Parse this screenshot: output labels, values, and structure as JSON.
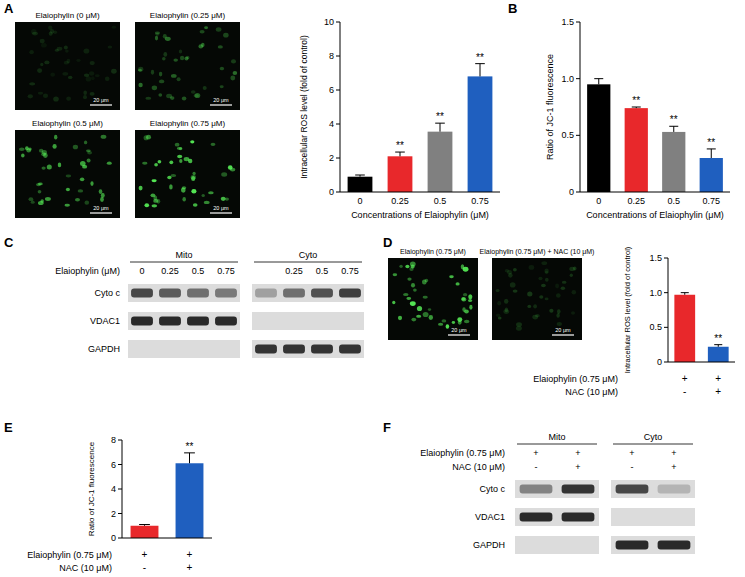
{
  "panel_labels": [
    "A",
    "B",
    "C",
    "D",
    "E",
    "F"
  ],
  "micrographs": [
    {
      "label": "Elaiophylin (0 μM)",
      "scale_bar": "20 μm",
      "intensity": 0.15
    },
    {
      "label": "Elaiophylin (0.25 μM)",
      "scale_bar": "20 μm",
      "intensity": 0.4
    },
    {
      "label": "Elaiophylin (0.5 μM)",
      "scale_bar": "20 μm",
      "intensity": 0.65
    },
    {
      "label": "Elaiophylin (0.75 μM)",
      "scale_bar": "20 μm",
      "intensity": 0.9
    },
    {
      "label": "Elaiophylin (0.75 μM)",
      "scale_bar": "20 μm",
      "intensity": 0.9
    },
    {
      "label": "Elaiophylin (0.75 μM) + NAC (10 μM)",
      "scale_bar": "20 μm",
      "intensity": 0.2
    }
  ],
  "chart_data": [
    {
      "type": "bar",
      "y_label": "Intracellular ROS level (fold of control)",
      "x_label": "Concentrations of Elaiophylin (μM)",
      "categories": [
        "0",
        "0.25",
        "0.5",
        "0.75"
      ],
      "values": [
        0.9,
        2.1,
        3.55,
        6.8
      ],
      "errors": [
        0.1,
        0.25,
        0.5,
        0.75
      ],
      "colors": [
        "#000000",
        "#e8282b",
        "#808080",
        "#1f5fbf"
      ],
      "annotations": [
        null,
        "**",
        "**",
        "**"
      ],
      "ylim": [
        0,
        10
      ],
      "yticks": [
        0,
        2,
        4,
        6,
        8,
        10
      ]
    },
    {
      "type": "bar",
      "y_label": "Ratio of JC-1 fluorescence",
      "x_label": "Concentrations of Elaiophylin (μM)",
      "categories": [
        "0",
        "0.25",
        "0.5",
        "0.75"
      ],
      "values": [
        0.95,
        0.74,
        0.53,
        0.3
      ],
      "errors": [
        0.05,
        0.01,
        0.05,
        0.08
      ],
      "colors": [
        "#000000",
        "#e8282b",
        "#808080",
        "#1f5fbf"
      ],
      "annotations": [
        null,
        "**",
        "**",
        "**"
      ],
      "ylim": [
        0,
        1.5
      ],
      "yticks": [
        0,
        0.5,
        {
          "value": 1,
          "label": "1.0"
        },
        1.5
      ]
    },
    {
      "type": "bar",
      "y_label": "Intracellular ROS level (fold of control)",
      "categories": [
        null,
        null
      ],
      "values": [
        0.97,
        0.22
      ],
      "errors": [
        0.03,
        0.03
      ],
      "colors": [
        "#e8282b",
        "#1f5fbf"
      ],
      "annotations": [
        null,
        "**"
      ],
      "treatments": [
        {
          "label": "Elaiophylin (0.75 μM)",
          "values": [
            "+",
            "+"
          ]
        },
        {
          "label": "NAC (10 μM)",
          "values": [
            "-",
            "+"
          ]
        }
      ],
      "ylim": [
        0,
        1.5
      ],
      "yticks": [
        0,
        0.5,
        {
          "value": 1,
          "label": "1.0"
        },
        1.5
      ]
    },
    {
      "type": "bar",
      "y_label": "Ratio of JC-1 fluorescence",
      "categories": [
        null,
        null
      ],
      "values": [
        1.0,
        6.1
      ],
      "errors": [
        0.1,
        0.85
      ],
      "colors": [
        "#e8282b",
        "#1f5fbf"
      ],
      "annotations": [
        null,
        "**"
      ],
      "treatments": [
        {
          "label": "Elaiophylin (0.75 μM)",
          "values": [
            "+",
            "+"
          ]
        },
        {
          "label": "NAC (10 μM)",
          "values": [
            "-",
            "+"
          ]
        }
      ],
      "ylim": [
        0,
        8
      ],
      "yticks": [
        0,
        2,
        4,
        6,
        8
      ]
    }
  ],
  "blots": [
    {
      "groups": [
        {
          "label": "Mito",
          "lanes": 4
        },
        {
          "label": "Cyto",
          "lanes": 4
        }
      ],
      "conditions": [
        {
          "label": "Elaiophylin (μM)",
          "values": [
            "0",
            "0.25",
            "0.5",
            "0.75",
            null,
            "0.25",
            "0.5",
            "0.75"
          ]
        }
      ],
      "bands": [
        {
          "label": "Cyto c",
          "intensity": [
            0.75,
            0.65,
            0.55,
            0.5,
            0.3,
            0.55,
            0.7,
            0.8
          ]
        },
        {
          "label": "VDAC1",
          "intensity": [
            0.9,
            0.9,
            0.9,
            0.9,
            0,
            0,
            0,
            0
          ]
        },
        {
          "label": "GAPDH",
          "intensity": [
            0,
            0,
            0,
            0,
            0.85,
            0.85,
            0.85,
            0.85
          ]
        }
      ]
    },
    {
      "groups": [
        {
          "label": "Mito",
          "lanes": 2
        },
        {
          "label": "Cyto",
          "lanes": 2
        }
      ],
      "conditions": [
        {
          "label": "Elaiophylin (0.75 μM)",
          "values": [
            "+",
            "+",
            "+",
            "+"
          ]
        },
        {
          "label": "NAC (10 μM)",
          "values": [
            "-",
            "+",
            "-",
            "+"
          ]
        }
      ],
      "bands": [
        {
          "label": "Cyto c",
          "intensity": [
            0.45,
            0.85,
            0.75,
            0.2
          ]
        },
        {
          "label": "VDAC1",
          "intensity": [
            0.9,
            0.9,
            0,
            0
          ]
        },
        {
          "label": "GAPDH",
          "intensity": [
            0,
            0,
            0.9,
            0.9
          ]
        }
      ]
    }
  ]
}
